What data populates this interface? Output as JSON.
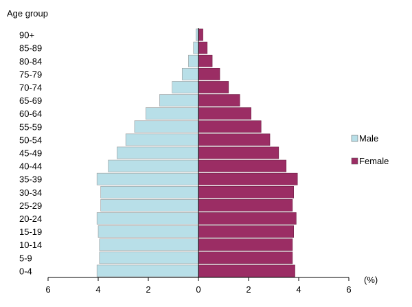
{
  "chart_data": {
    "type": "bar",
    "orientation": "horizontal-pyramid",
    "ylabel": "Age group",
    "xlabel": "(%)",
    "xlim": [
      -6,
      6
    ],
    "x_ticks": [
      {
        "value": -6,
        "label": "6"
      },
      {
        "value": -4,
        "label": "4"
      },
      {
        "value": -2,
        "label": "2"
      },
      {
        "value": 0,
        "label": "0"
      },
      {
        "value": 2,
        "label": "2"
      },
      {
        "value": 4,
        "label": "4"
      },
      {
        "value": 6,
        "label": "6"
      }
    ],
    "grid": false,
    "legend_position": "right",
    "categories": [
      "0-4",
      "5-9",
      "10-14",
      "15-19",
      "20-24",
      "25-29",
      "30-34",
      "35-39",
      "40-44",
      "45-49",
      "50-54",
      "55-59",
      "60-64",
      "65-69",
      "70-74",
      "75-79",
      "80-84",
      "85-89",
      "90+"
    ],
    "series": [
      {
        "name": "Male",
        "color": "#b8dfe8",
        "values": [
          4.05,
          3.95,
          3.95,
          4.0,
          4.05,
          3.9,
          3.9,
          4.05,
          3.6,
          3.25,
          2.9,
          2.55,
          2.1,
          1.55,
          1.05,
          0.65,
          0.4,
          0.2,
          0.1
        ]
      },
      {
        "name": "Female",
        "color": "#9b2d64",
        "values": [
          3.85,
          3.75,
          3.75,
          3.8,
          3.9,
          3.75,
          3.8,
          3.95,
          3.5,
          3.2,
          2.85,
          2.5,
          2.1,
          1.65,
          1.2,
          0.85,
          0.55,
          0.35,
          0.18
        ]
      }
    ]
  }
}
